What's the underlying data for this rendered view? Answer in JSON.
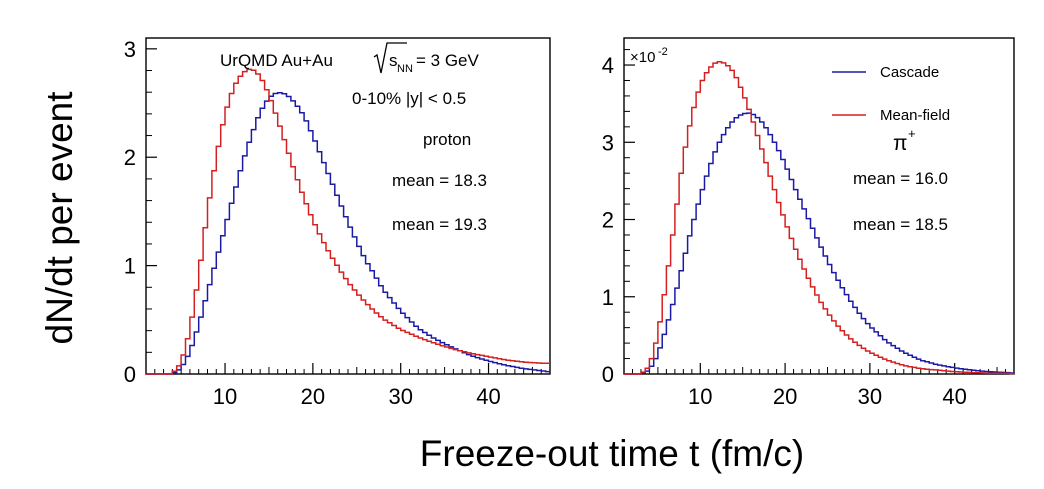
{
  "figure": {
    "ylabel": "dN/dt per event",
    "xlabel": "Freeze-out time t (fm/c)"
  },
  "colors": {
    "cascade": "#1a1aa6",
    "meanfield": "#d42020"
  },
  "chart_data": [
    {
      "type": "line",
      "annotations": {
        "system_prefix": "UrQMD Au+Au",
        "sqrt_s": "s",
        "sqrt_s_sub": "NN",
        "energy": "= 3 GeV",
        "centrality": "0-10% |y| < 0.5",
        "particle": "proton",
        "mean_meanfield": "mean = 18.3",
        "mean_cascade": "mean = 19.3"
      },
      "xlim": [
        1,
        47
      ],
      "ylim": [
        0,
        3.1
      ],
      "xticks": [
        10,
        20,
        30,
        40
      ],
      "xtick_labels": [
        "10",
        "20",
        "30",
        "40"
      ],
      "yticks": [
        0,
        1,
        2,
        3
      ],
      "ytick_labels": [
        "0",
        "1",
        "2",
        "3"
      ],
      "series": [
        {
          "name": "Cascade",
          "color": "#1a1aa6",
          "x": [
            4,
            5,
            6,
            7,
            8,
            9,
            10,
            11,
            12,
            13,
            14,
            15,
            16,
            17,
            18,
            19,
            20,
            21,
            22,
            23,
            24,
            25,
            26,
            27,
            28,
            29,
            30,
            32,
            34,
            36,
            38,
            40,
            42,
            44,
            46,
            47
          ],
          "values": [
            0.0,
            0.05,
            0.2,
            0.45,
            0.75,
            1.05,
            1.35,
            1.65,
            1.95,
            2.2,
            2.42,
            2.55,
            2.6,
            2.58,
            2.5,
            2.38,
            2.2,
            2.0,
            1.8,
            1.6,
            1.4,
            1.22,
            1.05,
            0.92,
            0.78,
            0.68,
            0.58,
            0.42,
            0.32,
            0.24,
            0.17,
            0.12,
            0.08,
            0.05,
            0.03,
            0.02
          ]
        },
        {
          "name": "Mean-field",
          "color": "#d42020",
          "x": [
            4,
            5,
            6,
            7,
            8,
            9,
            10,
            11,
            12,
            13,
            14,
            15,
            16,
            17,
            18,
            19,
            20,
            21,
            22,
            23,
            24,
            25,
            26,
            27,
            28,
            29,
            30,
            32,
            34,
            36,
            38,
            40,
            42,
            44,
            46,
            47
          ],
          "values": [
            0.0,
            0.1,
            0.4,
            0.9,
            1.5,
            2.0,
            2.4,
            2.65,
            2.78,
            2.82,
            2.75,
            2.58,
            2.35,
            2.1,
            1.85,
            1.62,
            1.42,
            1.25,
            1.1,
            0.97,
            0.85,
            0.75,
            0.66,
            0.58,
            0.51,
            0.46,
            0.41,
            0.34,
            0.28,
            0.23,
            0.19,
            0.16,
            0.13,
            0.11,
            0.1,
            0.1
          ]
        }
      ]
    },
    {
      "type": "line",
      "annotations": {
        "multiplier_base": "×10",
        "multiplier_exp": "-2",
        "particle": "π",
        "particle_sup": "+",
        "mean_meanfield": "mean = 16.0",
        "mean_cascade": "mean = 18.5"
      },
      "legend": {
        "position": "top-right",
        "entries": [
          "Cascade",
          "Mean-field"
        ]
      },
      "xlim": [
        1,
        47
      ],
      "ylim": [
        0,
        4.35
      ],
      "xticks": [
        10,
        20,
        30,
        40
      ],
      "xtick_labels": [
        "10",
        "20",
        "30",
        "40"
      ],
      "yticks": [
        0,
        1,
        2,
        3,
        4
      ],
      "ytick_labels": [
        "0",
        "1",
        "2",
        "3",
        "4"
      ],
      "series": [
        {
          "name": "Cascade",
          "color": "#1a1aa6",
          "x": [
            3,
            4,
            5,
            6,
            7,
            8,
            9,
            10,
            11,
            12,
            13,
            14,
            15,
            16,
            17,
            18,
            19,
            20,
            21,
            22,
            23,
            24,
            25,
            26,
            27,
            28,
            29,
            30,
            32,
            34,
            36,
            38,
            40,
            42,
            44,
            46,
            47
          ],
          "values": [
            0.0,
            0.05,
            0.25,
            0.6,
            1.0,
            1.45,
            1.9,
            2.3,
            2.65,
            2.95,
            3.15,
            3.3,
            3.37,
            3.38,
            3.3,
            3.15,
            2.95,
            2.72,
            2.45,
            2.2,
            1.95,
            1.7,
            1.47,
            1.26,
            1.07,
            0.9,
            0.75,
            0.62,
            0.42,
            0.28,
            0.18,
            0.12,
            0.08,
            0.05,
            0.03,
            0.02,
            0.01
          ]
        },
        {
          "name": "Mean-field",
          "color": "#d42020",
          "x": [
            3,
            4,
            5,
            6,
            7,
            8,
            9,
            10,
            11,
            12,
            13,
            14,
            15,
            16,
            17,
            18,
            19,
            20,
            21,
            22,
            23,
            24,
            25,
            26,
            27,
            28,
            29,
            30,
            32,
            34,
            36,
            38,
            40,
            42,
            44,
            46,
            47
          ],
          "values": [
            0.0,
            0.1,
            0.5,
            1.2,
            2.0,
            2.8,
            3.35,
            3.75,
            3.95,
            4.05,
            4.02,
            3.9,
            3.65,
            3.35,
            3.0,
            2.65,
            2.3,
            1.98,
            1.68,
            1.42,
            1.18,
            0.97,
            0.8,
            0.65,
            0.53,
            0.43,
            0.35,
            0.28,
            0.18,
            0.11,
            0.07,
            0.05,
            0.03,
            0.02,
            0.01,
            0.01,
            0.0
          ]
        }
      ]
    }
  ]
}
